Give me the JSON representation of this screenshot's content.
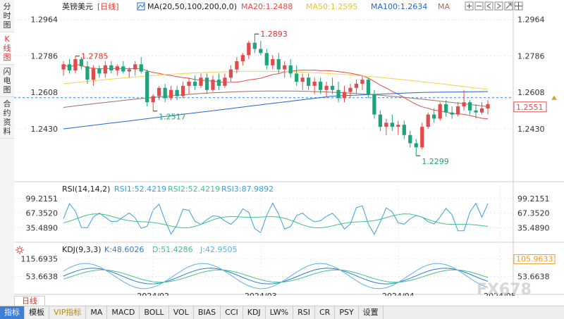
{
  "left_tabs": [
    {
      "label": "分时图",
      "active": false
    },
    {
      "label": "K线图",
      "active": true
    },
    {
      "label": "闪电图",
      "active": false
    },
    {
      "label": "合约资料",
      "active": false
    }
  ],
  "header": {
    "symbol": "英镑美元",
    "period": "[日线]",
    "ma_title": "MA(20,50,100,200,0,0)",
    "ma20": "MA20:1.2488",
    "ma50": "MA50:1.2595",
    "ma100": "MA100:1.2634",
    "ma_extra": "MA",
    "tool_icons": [
      "plus-icon",
      "minus-icon",
      "left-icon",
      "right-icon",
      "expand-icon",
      "grid-icon"
    ]
  },
  "price_axis": {
    "ticks": [
      "1.2964",
      "1.2786",
      "1.2608",
      "1.2430"
    ],
    "current_price": "1.2551",
    "high_label": "1.2893",
    "low_label": "1.2299",
    "left_high_label": "1.2785",
    "left_low_label": "1.2517"
  },
  "rsi": {
    "title": "RSI(14,14,2)",
    "rsi1": "RSI1:52.4219",
    "rsi2": "RSI2:52.4219",
    "rsi3": "RSI3:87.9892",
    "ticks": [
      "99.2151",
      "67.3520",
      "35.4890"
    ]
  },
  "kdj": {
    "title": "KDJ(9,3,3)",
    "k": "K:48.6026",
    "d": "D:51.4286",
    "j": "J:42.9505",
    "ticks": [
      "115.6935",
      "53.6638"
    ],
    "current": "105.9633"
  },
  "dates": [
    "2024/02",
    "2024/03",
    "2024/04",
    "2024/05"
  ],
  "day_tab": "日线",
  "bottom_tabs": [
    "指标",
    "模板",
    "VIP指标",
    "MA",
    "MACD",
    "BOLL",
    "VOL",
    "BIAS",
    "CCI",
    "KDJ",
    "LW%",
    "RSI",
    "CR",
    "PSY",
    "设置"
  ],
  "watermark": "FX678",
  "colors": {
    "up": "#e24b4b",
    "down": "#1fa37a",
    "ma20": "#e24b4b",
    "ma50": "#f0d34a",
    "ma100": "#2266cc",
    "ma200": "#a07060",
    "rsi1": "#3aa0d8",
    "rsi2": "#44c088",
    "kdj_k": "#2f7bd0",
    "kdj_d": "#44c088",
    "kdj_j": "#5ab0e8",
    "axis": "#cfcfcf",
    "grid": "#e8e8e8",
    "price_line": "#3d7fd6"
  },
  "chart_data": {
    "type": "candlestick",
    "candles": [
      [
        1.272,
        1.276,
        1.269,
        1.2745
      ],
      [
        1.2745,
        1.277,
        1.27,
        1.2715
      ],
      [
        1.2715,
        1.2785,
        1.27,
        1.277
      ],
      [
        1.277,
        1.278,
        1.272,
        1.2735
      ],
      [
        1.2735,
        1.276,
        1.265,
        1.267
      ],
      [
        1.267,
        1.274,
        1.264,
        1.2725
      ],
      [
        1.2725,
        1.274,
        1.268,
        1.27
      ],
      [
        1.27,
        1.276,
        1.268,
        1.274
      ],
      [
        1.274,
        1.276,
        1.27,
        1.2715
      ],
      [
        1.2715,
        1.2745,
        1.269,
        1.2735
      ],
      [
        1.2735,
        1.276,
        1.27,
        1.271
      ],
      [
        1.271,
        1.273,
        1.268,
        1.272
      ],
      [
        1.272,
        1.276,
        1.269,
        1.2745
      ],
      [
        1.2745,
        1.278,
        1.27,
        1.271
      ],
      [
        1.271,
        1.272,
        1.254,
        1.256
      ],
      [
        1.256,
        1.26,
        1.2517,
        1.259
      ],
      [
        1.259,
        1.264,
        1.257,
        1.263
      ],
      [
        1.263,
        1.265,
        1.256,
        1.258
      ],
      [
        1.258,
        1.264,
        1.257,
        1.262
      ],
      [
        1.262,
        1.264,
        1.257,
        1.259
      ],
      [
        1.259,
        1.266,
        1.258,
        1.264
      ],
      [
        1.264,
        1.268,
        1.26,
        1.266
      ],
      [
        1.266,
        1.269,
        1.262,
        1.264
      ],
      [
        1.264,
        1.27,
        1.263,
        1.268
      ],
      [
        1.268,
        1.27,
        1.26,
        1.262
      ],
      [
        1.262,
        1.269,
        1.261,
        1.267
      ],
      [
        1.267,
        1.27,
        1.262,
        1.264
      ],
      [
        1.264,
        1.27,
        1.263,
        1.268
      ],
      [
        1.268,
        1.274,
        1.266,
        1.272
      ],
      [
        1.272,
        1.278,
        1.27,
        1.276
      ],
      [
        1.276,
        1.28,
        1.274,
        1.279
      ],
      [
        1.279,
        1.286,
        1.277,
        1.285
      ],
      [
        1.285,
        1.2893,
        1.28,
        1.282
      ],
      [
        1.282,
        1.286,
        1.279,
        1.28
      ],
      [
        1.28,
        1.282,
        1.272,
        1.274
      ],
      [
        1.274,
        1.279,
        1.272,
        1.277
      ],
      [
        1.277,
        1.28,
        1.27,
        1.272
      ],
      [
        1.272,
        1.276,
        1.268,
        1.274
      ],
      [
        1.274,
        1.277,
        1.268,
        1.27
      ],
      [
        1.27,
        1.274,
        1.264,
        1.266
      ],
      [
        1.266,
        1.27,
        1.262,
        1.268
      ],
      [
        1.268,
        1.27,
        1.262,
        1.264
      ],
      [
        1.264,
        1.268,
        1.26,
        1.266
      ],
      [
        1.266,
        1.268,
        1.26,
        1.262
      ],
      [
        1.262,
        1.266,
        1.258,
        1.264
      ],
      [
        1.264,
        1.268,
        1.26,
        1.262
      ],
      [
        1.262,
        1.266,
        1.256,
        1.258
      ],
      [
        1.258,
        1.264,
        1.256,
        1.261
      ],
      [
        1.261,
        1.265,
        1.258,
        1.263
      ],
      [
        1.263,
        1.267,
        1.26,
        1.265
      ],
      [
        1.265,
        1.269,
        1.262,
        1.267
      ],
      [
        1.267,
        1.268,
        1.258,
        1.26
      ],
      [
        1.26,
        1.262,
        1.248,
        1.25
      ],
      [
        1.25,
        1.252,
        1.242,
        1.244
      ],
      [
        1.244,
        1.248,
        1.24,
        1.246
      ],
      [
        1.246,
        1.25,
        1.242,
        1.244
      ],
      [
        1.244,
        1.247,
        1.24,
        1.245
      ],
      [
        1.245,
        1.247,
        1.238,
        1.24
      ],
      [
        1.24,
        1.242,
        1.234,
        1.236
      ],
      [
        1.236,
        1.238,
        1.2299,
        1.234
      ],
      [
        1.234,
        1.246,
        1.233,
        1.244
      ],
      [
        1.244,
        1.251,
        1.243,
        1.25
      ],
      [
        1.25,
        1.253,
        1.246,
        1.248
      ],
      [
        1.248,
        1.256,
        1.247,
        1.255
      ],
      [
        1.255,
        1.257,
        1.249,
        1.251
      ],
      [
        1.251,
        1.254,
        1.248,
        1.25
      ],
      [
        1.25,
        1.256,
        1.249,
        1.254
      ],
      [
        1.254,
        1.262,
        1.252,
        1.256
      ],
      [
        1.256,
        1.257,
        1.25,
        1.252
      ],
      [
        1.252,
        1.255,
        1.248,
        1.251
      ],
      [
        1.251,
        1.256,
        1.25,
        1.253
      ],
      [
        1.253,
        1.257,
        1.25,
        1.2551
      ]
    ],
    "price_range": [
      1.22,
      1.299
    ],
    "rsi_range": [
      10,
      105
    ],
    "kdj_range": [
      0,
      130
    ],
    "date_index": [
      15,
      33,
      56,
      73
    ]
  }
}
